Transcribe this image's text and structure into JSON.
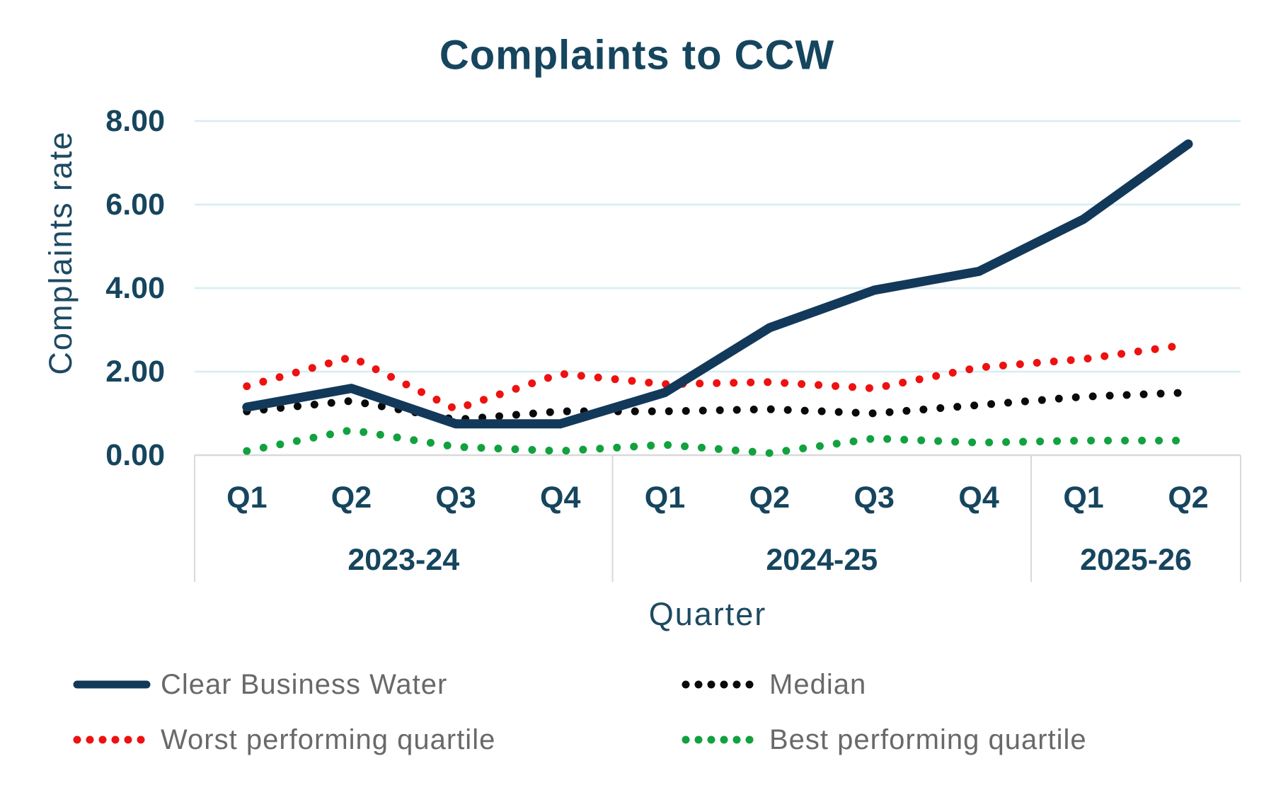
{
  "chart_data": {
    "type": "line",
    "title": "Complaints to CCW",
    "xlabel": "Quarter",
    "ylabel": "Complaints rate",
    "ylim": [
      0,
      8
    ],
    "y_ticks": [
      0,
      2,
      4,
      6,
      8
    ],
    "y_tick_labels": [
      "0.00",
      "2.00",
      "4.00",
      "6.00",
      "8.00"
    ],
    "grid": true,
    "legend_position": "bottom",
    "x_groups": [
      {
        "year": "2023-24",
        "quarters": [
          "Q1",
          "Q2",
          "Q3",
          "Q4"
        ]
      },
      {
        "year": "2024-25",
        "quarters": [
          "Q1",
          "Q2",
          "Q3",
          "Q4"
        ]
      },
      {
        "year": "2025-26",
        "quarters": [
          "Q1",
          "Q2"
        ]
      }
    ],
    "categories": [
      "Q1 2023-24",
      "Q2 2023-24",
      "Q3 2023-24",
      "Q4 2023-24",
      "Q1 2024-25",
      "Q2 2024-25",
      "Q3 2024-25",
      "Q4 2024-25",
      "Q1 2025-26",
      "Q2 2025-26"
    ],
    "series": [
      {
        "name": "Clear Business Water",
        "style": "solid",
        "color": "#12395a",
        "values": [
          1.15,
          1.6,
          0.75,
          0.75,
          1.5,
          3.05,
          3.95,
          4.4,
          5.65,
          7.45
        ]
      },
      {
        "name": "Median",
        "style": "dotted",
        "color": "#0a0a0a",
        "values": [
          1.05,
          1.3,
          0.85,
          1.05,
          1.05,
          1.1,
          1.0,
          1.2,
          1.4,
          1.5
        ]
      },
      {
        "name": "Worst performing quartile",
        "style": "dotted",
        "color": "#ee1111",
        "values": [
          1.65,
          2.35,
          1.1,
          1.95,
          1.7,
          1.75,
          1.6,
          2.1,
          2.3,
          2.65
        ]
      },
      {
        "name": "Best performing quartile",
        "style": "dotted",
        "color": "#12a13f",
        "values": [
          0.1,
          0.6,
          0.2,
          0.1,
          0.25,
          0.05,
          0.4,
          0.3,
          0.35,
          0.35
        ]
      }
    ],
    "colors": {
      "gridline": "#d6eef3",
      "axis": "#d9d9d9",
      "label": "#16455e",
      "legend_text": "#696969"
    }
  }
}
